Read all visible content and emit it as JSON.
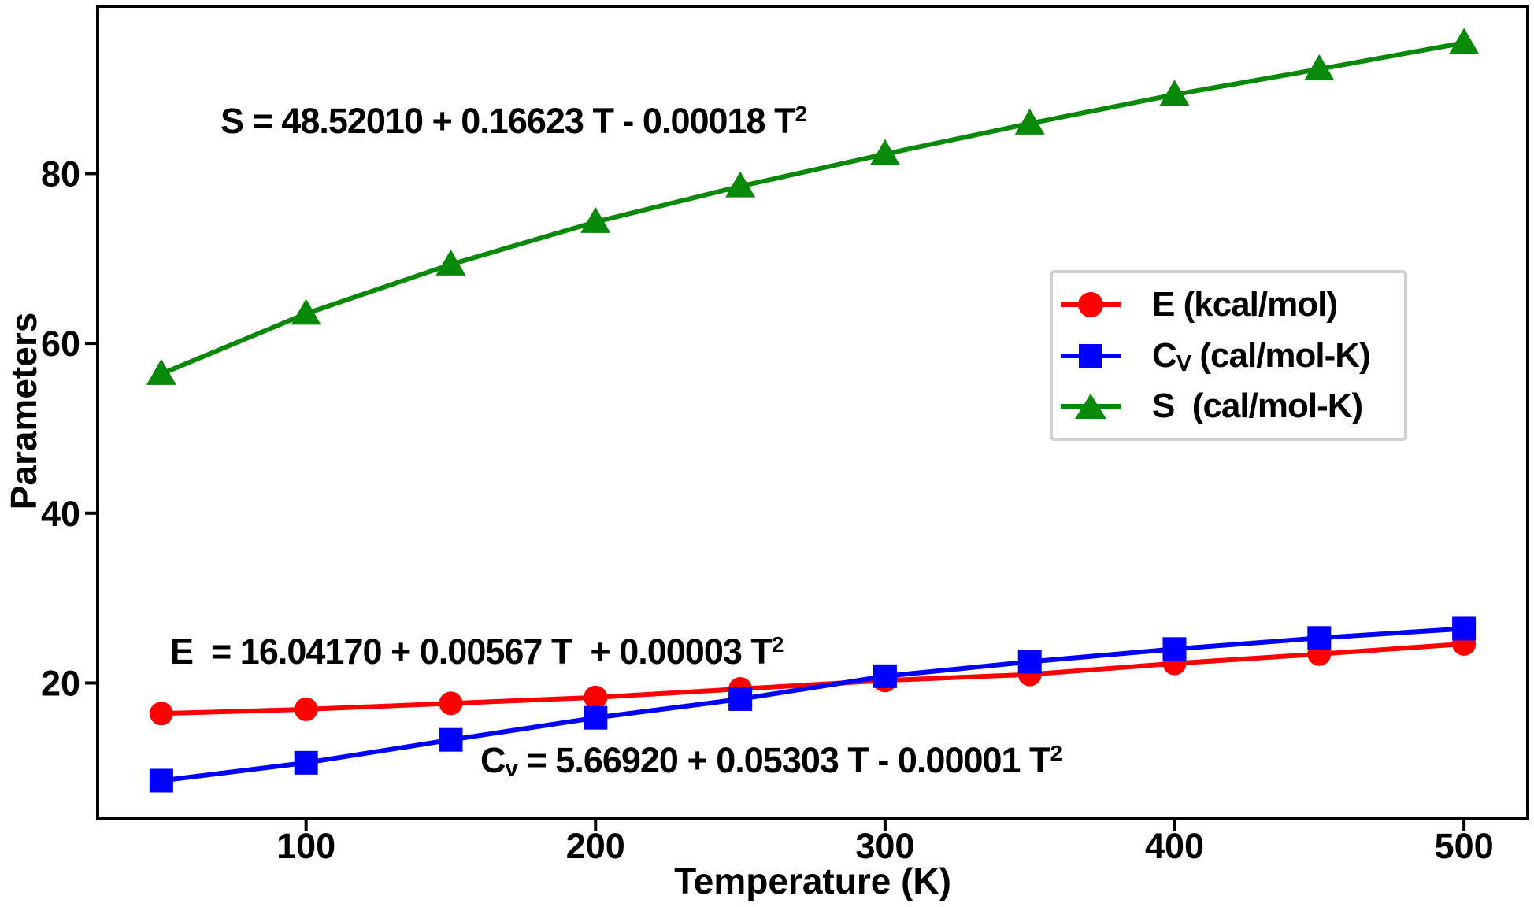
{
  "figure": {
    "background": "#ffffff",
    "frame_color": "#000000"
  },
  "chart_data": {
    "type": "line",
    "xlabel": "Temperature (K)",
    "ylabel": "Parameters",
    "x": [
      50,
      100,
      150,
      200,
      250,
      300,
      350,
      400,
      450,
      500
    ],
    "x_ticks": [
      100,
      200,
      300,
      400,
      500
    ],
    "y_ticks": [
      20,
      40,
      60,
      80
    ],
    "xlim": [
      28,
      522
    ],
    "ylim": [
      4,
      99.7
    ],
    "grid": false,
    "legend_position": "center-right",
    "series": [
      {
        "name": "E (kcal/mol)",
        "color": "#ff0000",
        "marker": "circle",
        "values": [
          16.4,
          16.9,
          17.6,
          18.3,
          19.3,
          20.3,
          21.0,
          22.3,
          23.4,
          24.6
        ]
      },
      {
        "name": "Cv (cal/mol-K)",
        "color": "#0000ff",
        "marker": "square",
        "values": [
          8.5,
          10.6,
          13.3,
          15.9,
          18.1,
          20.8,
          22.5,
          24.0,
          25.3,
          26.4
        ]
      },
      {
        "name": "S (cal/mol-K)",
        "color": "#088a08",
        "marker": "triangle",
        "values": [
          56.4,
          63.5,
          69.3,
          74.3,
          78.5,
          82.3,
          85.9,
          89.3,
          92.3,
          95.4
        ]
      }
    ]
  },
  "legend": {
    "border_color": "#cfcfcf",
    "items": [
      {
        "pre": "E",
        "sub": "",
        "label": " (kcal/mol)",
        "marker": "circle",
        "color": "#ff0000"
      },
      {
        "pre": "C",
        "sub": "V",
        "label": " (cal/mol-K)",
        "marker": "square",
        "color": "#0000ff"
      },
      {
        "pre": "S",
        "sub": "",
        "label": "  (cal/mol-K)",
        "marker": "triangle",
        "color": "#088a08"
      }
    ]
  },
  "equations": {
    "s": {
      "text": "S = 48.52010 + 0.16623 T - 0.00018 T",
      "sup": "2"
    },
    "e": {
      "text": "E  = 16.04170 + 0.00567 T  + 0.00003 T",
      "sup": "2"
    },
    "cv": {
      "pre": "C",
      "sub": "v",
      "text": " = 5.66920 + 0.05303 T - 0.00001 T",
      "sup": "2"
    }
  }
}
